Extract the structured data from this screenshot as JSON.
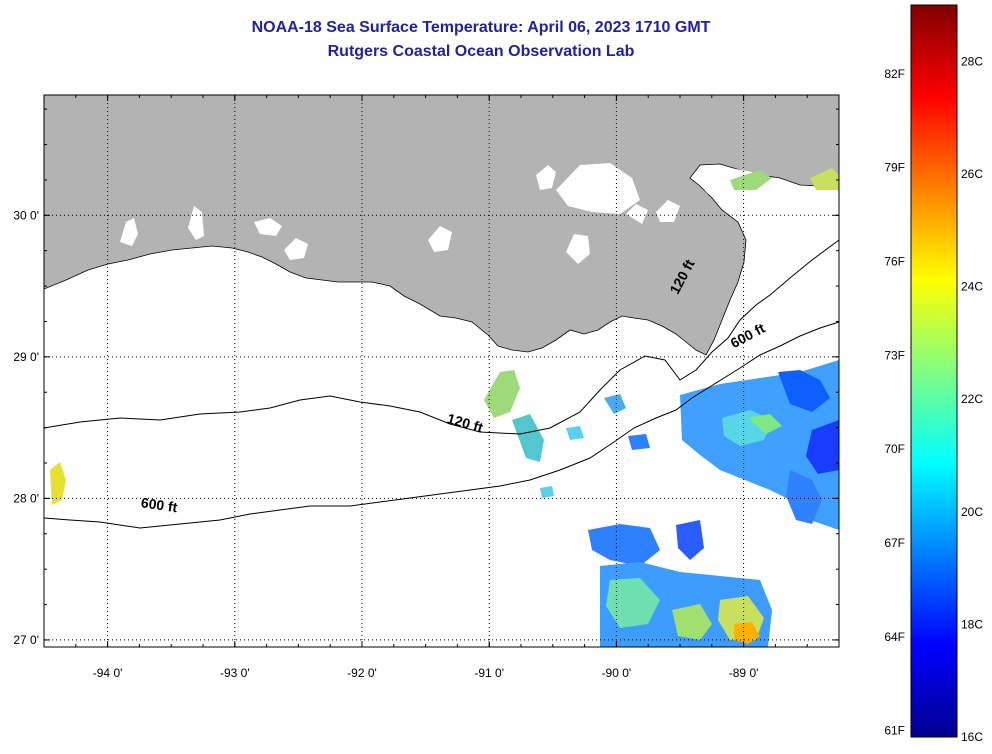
{
  "title": {
    "line1": "NOAA-18 Sea Surface Temperature:  April 06, 2023 1710 GMT",
    "line2": "Rutgers Coastal Ocean Observation Lab"
  },
  "map": {
    "lon_range": [
      -94.5,
      -88.25
    ],
    "lat_range": [
      26.95,
      30.85
    ],
    "lon_ticks": [
      {
        "value": -94,
        "label": "-94 0'"
      },
      {
        "value": -93,
        "label": "-93 0'"
      },
      {
        "value": -92,
        "label": "-92 0'"
      },
      {
        "value": -91,
        "label": "-91 0'"
      },
      {
        "value": -90,
        "label": "-90 0'"
      },
      {
        "value": -89,
        "label": "-89 0'"
      }
    ],
    "lat_ticks": [
      {
        "value": 30,
        "label": "30 0'"
      },
      {
        "value": 29,
        "label": "29 0'"
      },
      {
        "value": 28,
        "label": "28 0'"
      },
      {
        "value": 27,
        "label": "27 0'"
      }
    ],
    "grid": "dotted",
    "colors": {
      "land": "#b3b3b3",
      "ocean": "#ffffff",
      "contour": "#000000"
    },
    "contour_labels": [
      {
        "text": "120 ft",
        "lon": -89.45,
        "lat": 29.55,
        "angle": -62
      },
      {
        "text": "600 ft",
        "lon": -88.95,
        "lat": 29.12,
        "angle": -28
      },
      {
        "text": "120 ft",
        "lon": -91.2,
        "lat": 28.5,
        "angle": 16
      },
      {
        "text": "600 ft",
        "lon": -93.6,
        "lat": 27.92,
        "angle": 8
      }
    ]
  },
  "colorbar": {
    "min_c": 16,
    "max_c": 29,
    "f_labels": [
      "82F",
      "79F",
      "76F",
      "73F",
      "70F",
      "67F",
      "64F",
      "61F"
    ],
    "c_labels": [
      "28C",
      "26C",
      "24C",
      "22C",
      "20C",
      "18C",
      "16C"
    ]
  }
}
